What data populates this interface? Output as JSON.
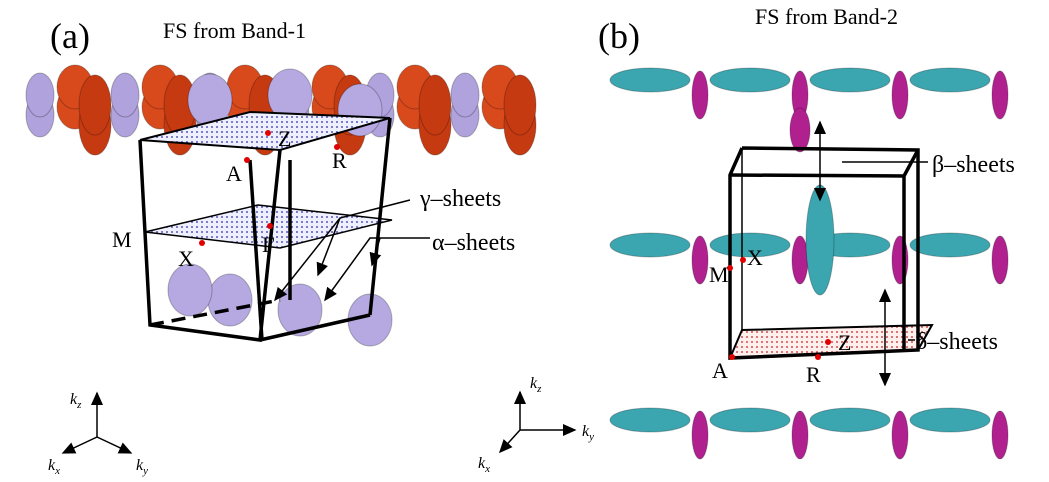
{
  "panel_a": {
    "label": "(a)",
    "title": "FS from Band-1",
    "points": {
      "z": "Z",
      "a": "A",
      "r": "R",
      "m": "M",
      "x": "X",
      "gamma": "Γ"
    },
    "annotations": [
      "γ–sheets",
      "α–sheets"
    ],
    "axes": {
      "z": {
        "base": "k",
        "sub": "z"
      },
      "x": {
        "base": "k",
        "sub": "x"
      },
      "y": {
        "base": "k",
        "sub": "y"
      }
    }
  },
  "panel_b": {
    "label": "(b)",
    "title": "FS from Band-2",
    "points": {
      "x": "X",
      "m": "M",
      "z": "Z",
      "a": "A",
      "r": "R"
    },
    "annotations": [
      "β–sheets",
      "δ–sheets"
    ],
    "axes": {
      "z": {
        "base": "k",
        "sub": "z"
      },
      "y": {
        "base": "k",
        "sub": "y"
      },
      "x": {
        "base": "k",
        "sub": "x"
      }
    }
  }
}
